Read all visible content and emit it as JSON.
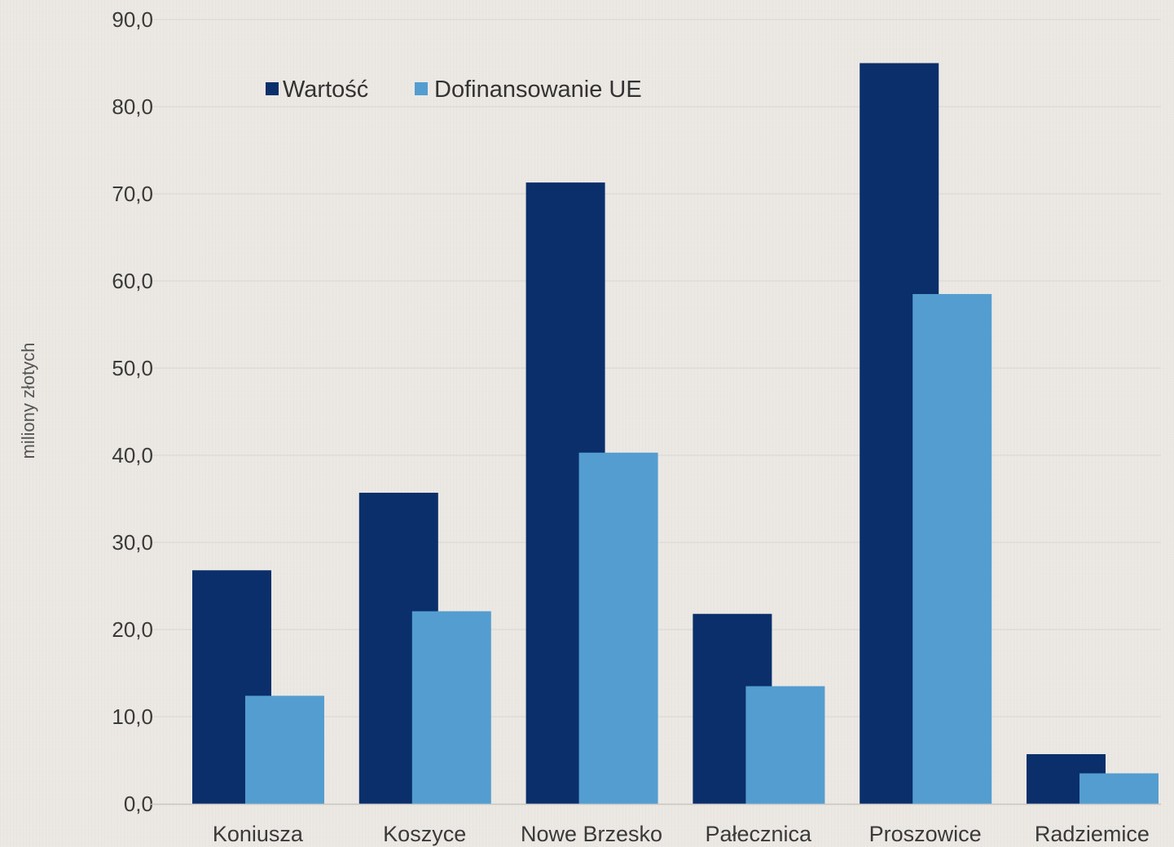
{
  "chart_data": {
    "type": "bar",
    "title": "",
    "xlabel": "",
    "ylabel": "miliony złotych",
    "ylim": [
      0,
      90
    ],
    "yticks": [
      0,
      10,
      20,
      30,
      40,
      50,
      60,
      70,
      80,
      90
    ],
    "ytick_labels": [
      "0,0",
      "10,0",
      "20,0",
      "30,0",
      "40,0",
      "50,0",
      "60,0",
      "70,0",
      "80,0",
      "90,0"
    ],
    "categories": [
      "Koniusza",
      "Koszyce",
      "Nowe Brzesko",
      "Pałecznica",
      "Proszowice",
      "Radziemice"
    ],
    "series": [
      {
        "name": "Wartość",
        "color": "#0a2f6b",
        "values": [
          26.8,
          35.7,
          71.3,
          21.8,
          85.0,
          5.7
        ]
      },
      {
        "name": "Dofinansowanie UE",
        "color": "#549dd0",
        "values": [
          12.4,
          22.1,
          40.3,
          13.5,
          58.5,
          3.5
        ]
      }
    ],
    "grid": true,
    "legend_position": "top-left"
  }
}
